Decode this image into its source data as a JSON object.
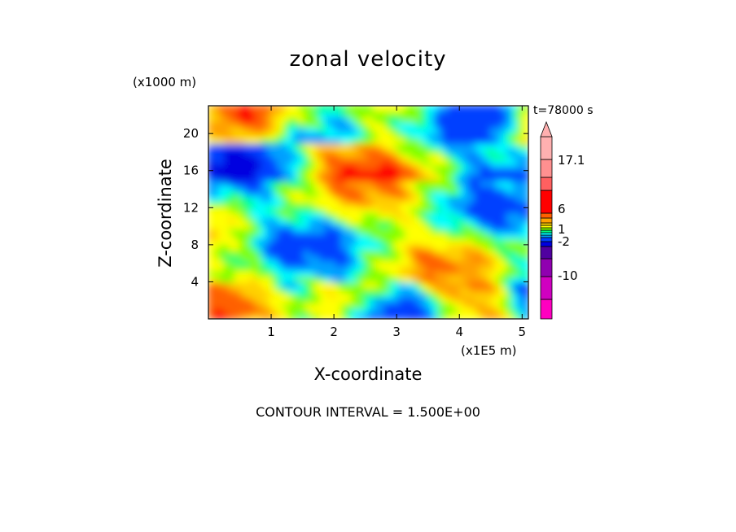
{
  "chart_data": {
    "type": "heatmap",
    "title": "zonal velocity",
    "xlabel": "X-coordinate",
    "ylabel": "Z-coordinate",
    "x_unit": "(x1E5 m)",
    "y_unit": "(x1000 m)",
    "annotation": "t=78000 s",
    "footer": "CONTOUR INTERVAL = 1.500E+00",
    "xlim": [
      0,
      5.1
    ],
    "ylim": [
      0,
      23
    ],
    "x_ticks": [
      1,
      2,
      3,
      4,
      5
    ],
    "y_ticks": [
      4,
      8,
      12,
      16,
      20
    ],
    "colorbar": {
      "tick_labels": [
        "17.1",
        "6",
        "1",
        "-2",
        "-10"
      ],
      "tick_values": [
        17.1,
        6,
        1,
        -2,
        -10
      ],
      "colors": [
        "#ff00c0",
        "#d000c0",
        "#9000b0",
        "#5000a0",
        "#0000e0",
        "#0040ff",
        "#00a0ff",
        "#00ffff",
        "#00ff80",
        "#80ff00",
        "#ffff00",
        "#ffd000",
        "#ffa000",
        "#ff6000",
        "#ff0000",
        "#ff6060",
        "#ff9090",
        "#ffb0b0"
      ]
    },
    "grid": false
  }
}
